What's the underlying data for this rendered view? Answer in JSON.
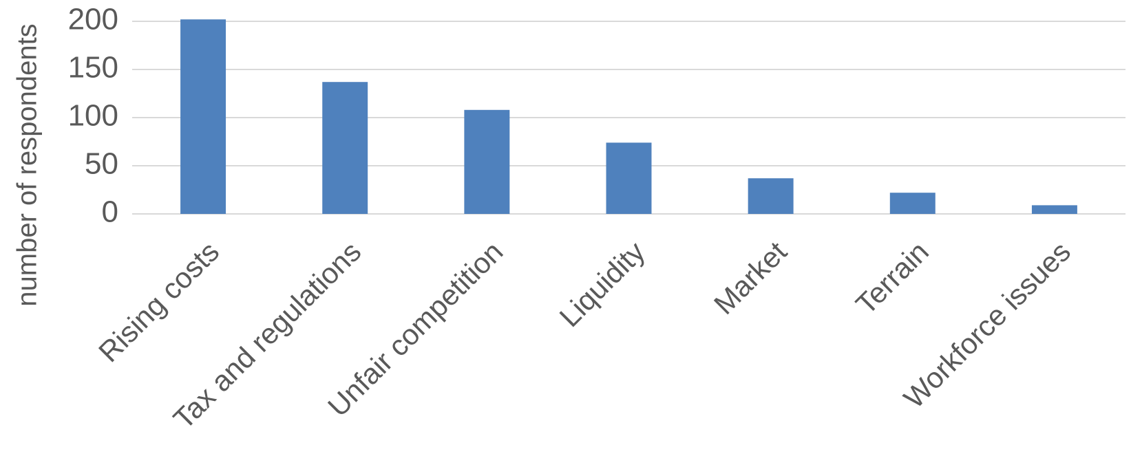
{
  "chart_data": {
    "type": "bar",
    "y_label": "number of respondents",
    "categories": [
      "Rising costs",
      "Tax and regulations",
      "Unfair competition",
      "Liquidity",
      "Market",
      "Terrain",
      "Workforce issues"
    ],
    "values": [
      202,
      137,
      108,
      74,
      37,
      22,
      9
    ],
    "color": "#4f81bd",
    "ylim": [
      0,
      200
    ],
    "yticks": [
      0,
      50,
      100,
      150,
      200
    ],
    "grid": true
  }
}
